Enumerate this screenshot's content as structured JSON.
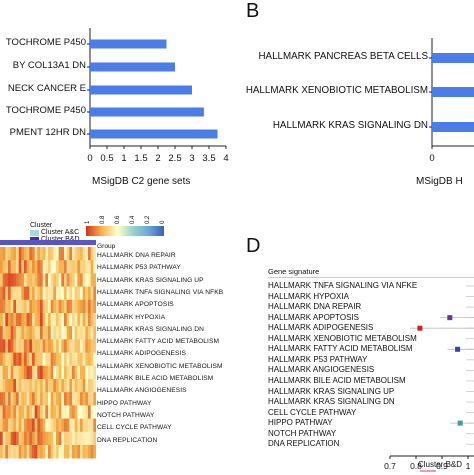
{
  "colors": {
    "bar": "#4a7de8",
    "cluster_ac": "#a6dcd8",
    "cluster_bd": "#3b33b5",
    "group_bar": "#5a55c4",
    "heat_low": "#ffffcc",
    "heat_mid": "#f5b24a",
    "heat_high": "#d7301f"
  },
  "panels": {
    "b": "B",
    "d": "D"
  },
  "chart_data": [
    {
      "type": "bar",
      "orientation": "horizontal",
      "panel": "A",
      "categories": [
        "TOCHROME P450",
        "BY COL13A1 DN",
        "NECK CANCER E",
        "TOCHROME P450",
        "PMENT 12HR DN"
      ],
      "values": [
        2.25,
        2.5,
        3.0,
        3.35,
        3.75
      ],
      "xlabel": "MSigDB C2 gene sets",
      "xlim": [
        0,
        4
      ],
      "ticks": [
        "0",
        "0.5",
        "1",
        "1.5",
        "2",
        "2.5",
        "3",
        "3.5",
        "4"
      ]
    },
    {
      "type": "bar",
      "orientation": "horizontal",
      "panel": "B",
      "categories": [
        "HALLMARK PANCREAS BETA CELLS",
        "HALLMARK XENOBIOTIC METABOLISM",
        "HALLMARK KRAS SIGNALING DN"
      ],
      "values": [
        0.6,
        0.6,
        0.6
      ],
      "xlabel": "MSigDB H",
      "ticks": [
        "0",
        "0.5"
      ]
    },
    {
      "type": "heatmap",
      "panel": "C",
      "legend_title": "Cluster",
      "legend_entries": [
        "Cluster A&C",
        "Cluster B&D"
      ],
      "scale_ticks": [
        "1",
        "0.8",
        "0.6",
        "0.4",
        "0.2",
        "0"
      ],
      "group_label": "Group",
      "rows": [
        "HALLMARK DNA REPAIR",
        "HALLMARK P53 PATHWAY",
        "HALLMARK KRAS SIGNALING UP",
        "HALLMARK TNFA SIGNALING VIA NFKB",
        "HALLMARK APOPTOSIS",
        "HALLMARK HYPOXIA",
        "HALLMARK KRAS SIGNALING DN",
        "HALLMARK FATTY ACID METABOLISM",
        "HALLMARK ADIPOGENESIS",
        "HALLMARK XENOBIOTIC METABOLISM",
        "HALLMARK BILE ACID METABOLISM",
        "HALLMARK ANGIOGENESIS",
        "HIPPO PATHWAY",
        "NOTCH PATHWAY",
        "CELL CYCLE PATHWAY",
        "DNA REPLICATION"
      ]
    },
    {
      "type": "scatter",
      "panel": "D",
      "title": "Gene signature",
      "rows": [
        "HALLMARK TNFA SIGNALING VIA NFKE",
        "HALLMARK HYPOXIA",
        "HALLMARK DNA REPAIR",
        "HALLMARK APOPTOSIS",
        "HALLMARK ADIPOGENESIS",
        "HALLMARK XENOBIOTIC METABOLISM",
        "HALLMARK FATTY ACID METABOLISM",
        "HALLMARK P53 PATHWAY",
        "HALLMARK ANGIOGENESIS",
        "HALLMARK BILE ACID METABOLISM",
        "HALLMARK KRAS SIGNALING UP",
        "HALLMARK KRAS SIGNALING DN",
        "CELL CYCLE PATHWAY",
        "HIPPO PATHWAY",
        "NOTCH PATHWAY",
        "DNA REPLICATION"
      ],
      "points": [
        {
          "row": 3,
          "x": 0.93,
          "color": "#6a2fb0"
        },
        {
          "row": 4,
          "x": 0.815,
          "color": "#cc2222"
        },
        {
          "row": 6,
          "x": 0.96,
          "color": "#3344aa"
        },
        {
          "row": 13,
          "x": 0.97,
          "color": "#3aa0a8"
        }
      ],
      "xlabel": "Cluster B&D",
      "ticks": [
        "0.7",
        "0.8",
        "0.9",
        "1"
      ],
      "xlim": [
        0.7,
        1.0
      ]
    }
  ]
}
